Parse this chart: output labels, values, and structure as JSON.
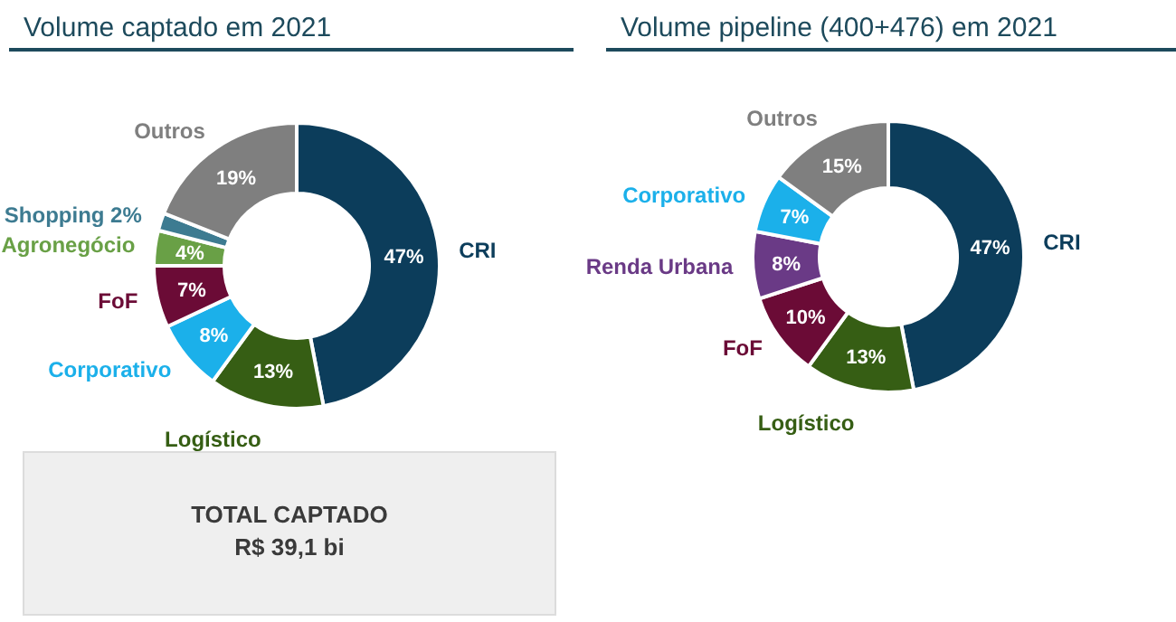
{
  "chart_data": [
    {
      "type": "donut",
      "title": "Volume captado em 2021",
      "categories": [
        "CRI",
        "Logístico",
        "Corporativo",
        "FoF",
        "Agronegócio",
        "Shopping",
        "Outros"
      ],
      "values": [
        47,
        13,
        8,
        7,
        4,
        2,
        19
      ],
      "colors": [
        "#0c3d5b",
        "#365e14",
        "#1bb0ea",
        "#6b0b36",
        "#69a046",
        "#3d7b91",
        "#7f7f7f"
      ],
      "value_labels": [
        "47%",
        "13%",
        "8%",
        "7%",
        "4%",
        "2%",
        "19%"
      ]
    },
    {
      "type": "donut",
      "title": "Volume pipeline (400+476) em 2021",
      "categories": [
        "CRI",
        "Logístico",
        "FoF",
        "Renda Urbana",
        "Corporativo",
        "Outros"
      ],
      "values": [
        47,
        13,
        10,
        8,
        7,
        15
      ],
      "colors": [
        "#0c3d5b",
        "#365e14",
        "#6b0b36",
        "#6a3a86",
        "#1bb0ea",
        "#7f7f7f"
      ],
      "value_labels": [
        "47%",
        "13%",
        "10%",
        "8%",
        "7%",
        "15%"
      ]
    },
    {
      "type": "other",
      "title": "TOTAL CAPTADO",
      "annotations": [
        "R$ 39,1 bi"
      ]
    }
  ]
}
